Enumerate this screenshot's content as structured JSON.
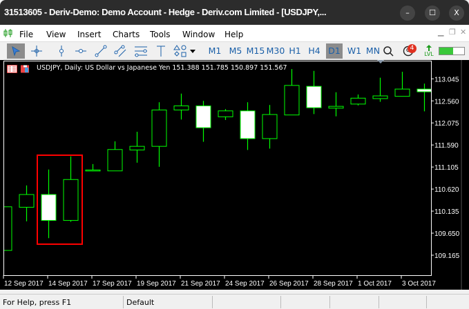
{
  "window": {
    "title": "31513605 - Deriv-Demo: Demo Account - Hedge - Deriv.com Limited - [USDJPY,...",
    "minimize": "–",
    "maximize": "☐",
    "close": "X"
  },
  "menu": [
    "File",
    "View",
    "Insert",
    "Charts",
    "Tools",
    "Window",
    "Help"
  ],
  "toolbar": {
    "tools": [
      "cursor-icon",
      "crosshair-icon",
      "vertical-line-icon",
      "horizontal-line-icon",
      "trendline-icon",
      "channel-icon",
      "fibonacci-icon",
      "text-icon",
      "shapes-icon"
    ],
    "timeframes": [
      "M1",
      "M5",
      "M15",
      "M30",
      "H1",
      "H4",
      "D1",
      "W1",
      "MN"
    ],
    "active_timeframe": "D1",
    "notifications_badge": "4",
    "lvl_label": "LVL",
    "signal_level": 0.55
  },
  "chart": {
    "info": "USDJPY, Daily:  US Dollar vs Japanese Yen  151.388 151.785 150.897 151.567",
    "colors": {
      "background": "#000000",
      "bull": "#00ff00",
      "bear_fill": "#ffffff",
      "highlight": "#ff0000"
    },
    "price_labels": [
      "113.045",
      "112.560",
      "112.075",
      "111.590",
      "111.105",
      "110.620",
      "110.135",
      "109.650",
      "109.165"
    ],
    "date_labels": [
      "12 Sep 2017",
      "14 Sep 2017",
      "17 Sep 2017",
      "19 Sep 2017",
      "21 Sep 2017",
      "24 Sep 2017",
      "26 Sep 2017",
      "28 Sep 2017",
      "1 Oct 2017",
      "3 Oct 2017"
    ]
  },
  "chart_data": {
    "type": "candlestick",
    "ylim": [
      109.0,
      113.3
    ],
    "highlighted": [
      "13 Sep 2017",
      "14 Sep 2017"
    ],
    "candles": [
      {
        "date": "12 Sep 2017",
        "open": 109.27,
        "high": 110.23,
        "low": 109.27,
        "close": 110.23
      },
      {
        "date": "13 Sep 2017",
        "open": 110.22,
        "high": 110.7,
        "low": 109.91,
        "close": 110.5
      },
      {
        "date": "14 Sep 2017",
        "open": 110.5,
        "high": 111.05,
        "low": 109.54,
        "close": 109.93
      },
      {
        "date": "15 Sep 2017",
        "open": 109.93,
        "high": 111.34,
        "low": 109.9,
        "close": 110.83
      },
      {
        "date": "17 Sep 2017",
        "open": 111.03,
        "high": 111.17,
        "low": 111.01,
        "close": 111.04
      },
      {
        "date": "18 Sep 2017",
        "open": 111.02,
        "high": 111.67,
        "low": 111.02,
        "close": 111.49
      },
      {
        "date": "19 Sep 2017",
        "open": 111.48,
        "high": 111.88,
        "low": 111.2,
        "close": 111.56
      },
      {
        "date": "20 Sep 2017",
        "open": 111.56,
        "high": 112.53,
        "low": 111.11,
        "close": 112.36
      },
      {
        "date": "21 Sep 2017",
        "open": 112.36,
        "high": 112.72,
        "low": 112.15,
        "close": 112.45
      },
      {
        "date": "22 Sep 2017",
        "open": 112.45,
        "high": 112.56,
        "low": 111.66,
        "close": 111.97
      },
      {
        "date": "24 Sep 2017",
        "open": 112.21,
        "high": 112.38,
        "low": 112.14,
        "close": 112.34
      },
      {
        "date": "25 Sep 2017",
        "open": 112.34,
        "high": 112.53,
        "low": 111.48,
        "close": 111.73
      },
      {
        "date": "26 Sep 2017",
        "open": 111.73,
        "high": 112.47,
        "low": 111.51,
        "close": 112.26
      },
      {
        "date": "27 Sep 2017",
        "open": 112.25,
        "high": 113.26,
        "low": 112.25,
        "close": 112.9
      },
      {
        "date": "28 Sep 2017",
        "open": 112.88,
        "high": 113.22,
        "low": 112.27,
        "close": 112.41
      },
      {
        "date": "29 Sep 2017",
        "open": 112.4,
        "high": 112.75,
        "low": 112.22,
        "close": 112.44
      },
      {
        "date": "1 Oct 2017",
        "open": 112.49,
        "high": 112.7,
        "low": 112.46,
        "close": 112.62
      },
      {
        "date": "2 Oct 2017",
        "open": 112.61,
        "high": 113.07,
        "low": 112.54,
        "close": 112.67
      },
      {
        "date": "3 Oct 2017",
        "open": 112.66,
        "high": 113.2,
        "low": 112.66,
        "close": 112.82
      },
      {
        "date": "4 Oct 2017",
        "open": 112.82,
        "high": 112.94,
        "low": 112.33,
        "close": 112.76
      }
    ]
  },
  "status": {
    "help": "For Help, press F1",
    "profile": "Default"
  }
}
